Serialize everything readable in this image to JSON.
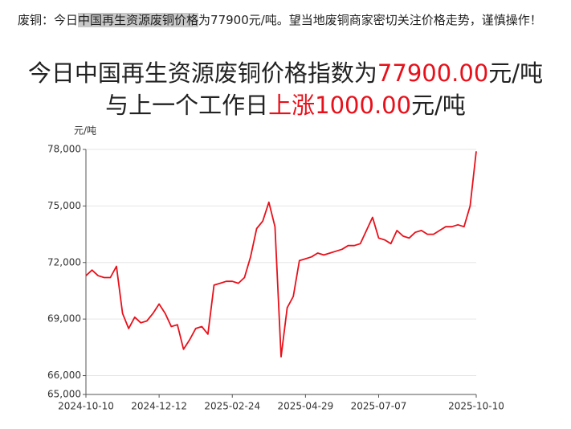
{
  "notice": {
    "parts": [
      "废铜：今日",
      "中国再生资源废铜价格",
      "为77900元/吨。望当地废铜商家密切关注价格走势，谨慎操作！"
    ]
  },
  "headline": {
    "line1": [
      "今日中国再生资源废铜价格指数为",
      "77900.00",
      "元/吨"
    ],
    "line2": [
      "与上一个工作日",
      "上涨1000.00",
      "元/吨"
    ]
  },
  "chart_data": {
    "type": "line",
    "y_label": "元/吨",
    "categories": [
      "2024-10-10",
      null,
      null,
      null,
      null,
      null,
      null,
      null,
      null,
      null,
      null,
      null,
      "2024-12-12",
      null,
      null,
      null,
      null,
      null,
      null,
      null,
      null,
      null,
      null,
      null,
      "2025-02-24",
      null,
      null,
      null,
      null,
      null,
      null,
      null,
      null,
      null,
      null,
      null,
      "2025-04-29",
      null,
      null,
      null,
      null,
      null,
      null,
      null,
      null,
      null,
      null,
      null,
      "2025-07-07",
      null,
      null,
      null,
      null,
      null,
      null,
      null,
      null,
      null,
      null,
      null,
      null,
      null,
      null,
      null,
      "2025-10-10"
    ],
    "series": [
      {
        "color": "#e8101a",
        "values": [
          71300,
          71600,
          71300,
          71200,
          71200,
          71800,
          69300,
          68500,
          69100,
          68800,
          68900,
          69300,
          69800,
          69300,
          68600,
          68700,
          67400,
          67900,
          68500,
          68600,
          68200,
          70800,
          70900,
          71000,
          71000,
          70900,
          71200,
          72300,
          73800,
          74200,
          75200,
          73900,
          67000,
          69600,
          70200,
          72100,
          72200,
          72300,
          72500,
          72400,
          72500,
          72600,
          72700,
          72900,
          72900,
          73000,
          73700,
          74400,
          73300,
          73200,
          73000,
          73700,
          73400,
          73300,
          73600,
          73700,
          73500,
          73500,
          73700,
          73900,
          73900,
          74000,
          73900,
          75000,
          77900
        ]
      }
    ],
    "ylim": [
      65000,
      78000
    ],
    "yticks": [
      {
        "value": 65000,
        "label": "65,000"
      },
      {
        "value": 66000,
        "label": "66,000"
      },
      {
        "value": 69000,
        "label": "69,000"
      },
      {
        "value": 72000,
        "label": "72,000"
      },
      {
        "value": 75000,
        "label": "75,000"
      },
      {
        "value": 78000,
        "label": "78,000"
      }
    ],
    "grid": true
  }
}
